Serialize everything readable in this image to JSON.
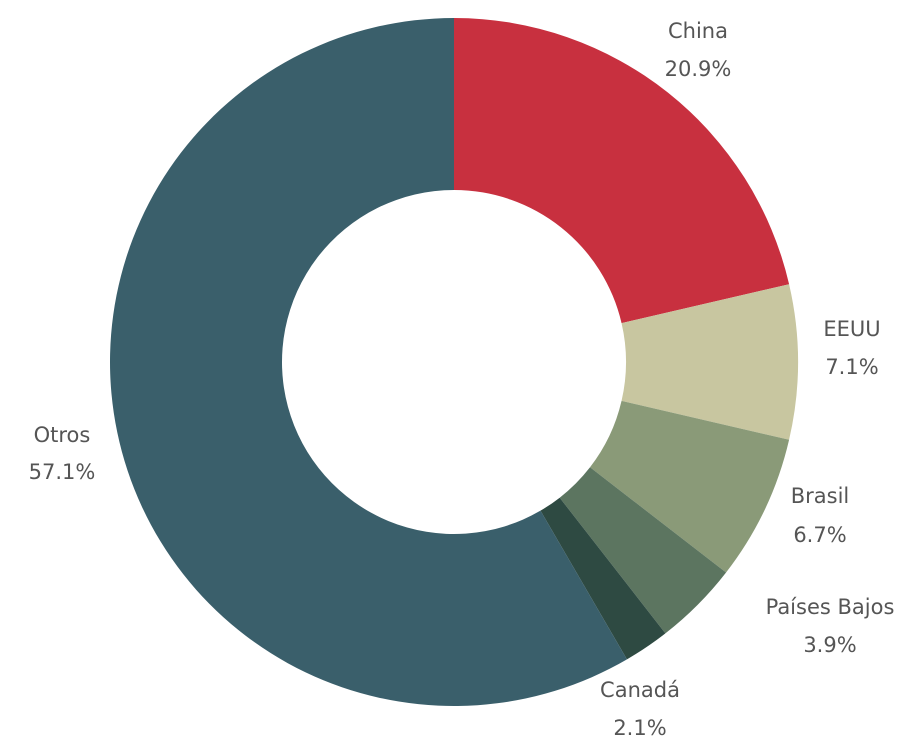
{
  "chart_data": {
    "type": "pie",
    "variant": "donut",
    "title": "",
    "legend": "none",
    "slices": [
      {
        "label": "China",
        "value": 20.9,
        "value_label": "20.9%",
        "color": "#c8303f"
      },
      {
        "label": "EEUU",
        "value": 7.1,
        "value_label": "7.1%",
        "color": "#c8c6a0"
      },
      {
        "label": "Brasil",
        "value": 6.7,
        "value_label": "6.7%",
        "color": "#8a9a78"
      },
      {
        "label": "Países Bajos",
        "value": 3.9,
        "value_label": "3.9%",
        "color": "#5c7560"
      },
      {
        "label": "Canadá",
        "value": 2.1,
        "value_label": "2.1%",
        "color": "#2e4a42"
      },
      {
        "label": "Otros",
        "value": 57.1,
        "value_label": "57.1%",
        "color": "#3a5f6b"
      }
    ]
  }
}
